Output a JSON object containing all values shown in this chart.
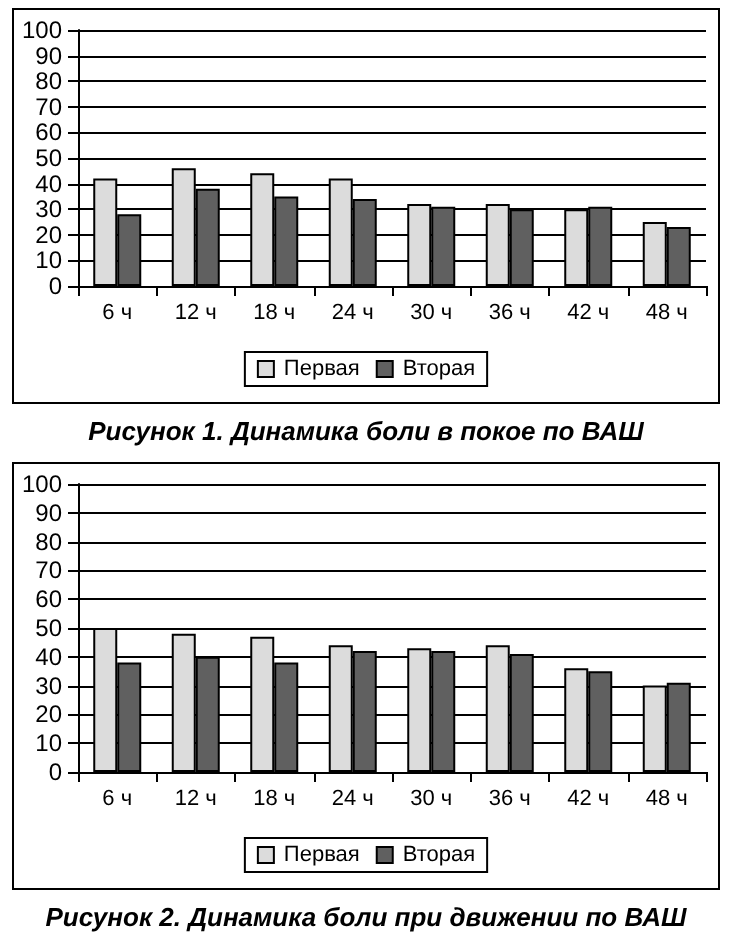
{
  "chart_data": [
    {
      "type": "bar",
      "title": "Рисунок 1. Динамика боли в покое по ВАШ",
      "categories": [
        "6 ч",
        "12 ч",
        "18 ч",
        "24 ч",
        "30 ч",
        "36 ч",
        "42 ч",
        "48 ч"
      ],
      "series": [
        {
          "name": "Первая",
          "color": "#dcdcdc",
          "values": [
            42,
            46,
            44,
            42,
            32,
            32,
            30,
            25
          ]
        },
        {
          "name": "Вторая",
          "color": "#606060",
          "values": [
            28,
            38,
            35,
            34,
            31,
            30,
            31,
            23
          ]
        }
      ],
      "ylim": [
        0,
        100
      ],
      "yticks": [
        0,
        10,
        20,
        30,
        40,
        50,
        60,
        70,
        80,
        90,
        100
      ],
      "grid": "y",
      "legend": "bottom"
    },
    {
      "type": "bar",
      "title": "Рисунок 2. Динамика боли при движении по ВАШ",
      "categories": [
        "6 ч",
        "12 ч",
        "18 ч",
        "24 ч",
        "30 ч",
        "36 ч",
        "42 ч",
        "48 ч"
      ],
      "series": [
        {
          "name": "Первая",
          "color": "#dcdcdc",
          "values": [
            50,
            48,
            47,
            44,
            43,
            44,
            36,
            30
          ]
        },
        {
          "name": "Вторая",
          "color": "#606060",
          "values": [
            38,
            40,
            38,
            42,
            42,
            41,
            35,
            31
          ]
        }
      ],
      "ylim": [
        0,
        100
      ],
      "yticks": [
        0,
        10,
        20,
        30,
        40,
        50,
        60,
        70,
        80,
        90,
        100
      ],
      "grid": "y",
      "legend": "bottom"
    }
  ]
}
